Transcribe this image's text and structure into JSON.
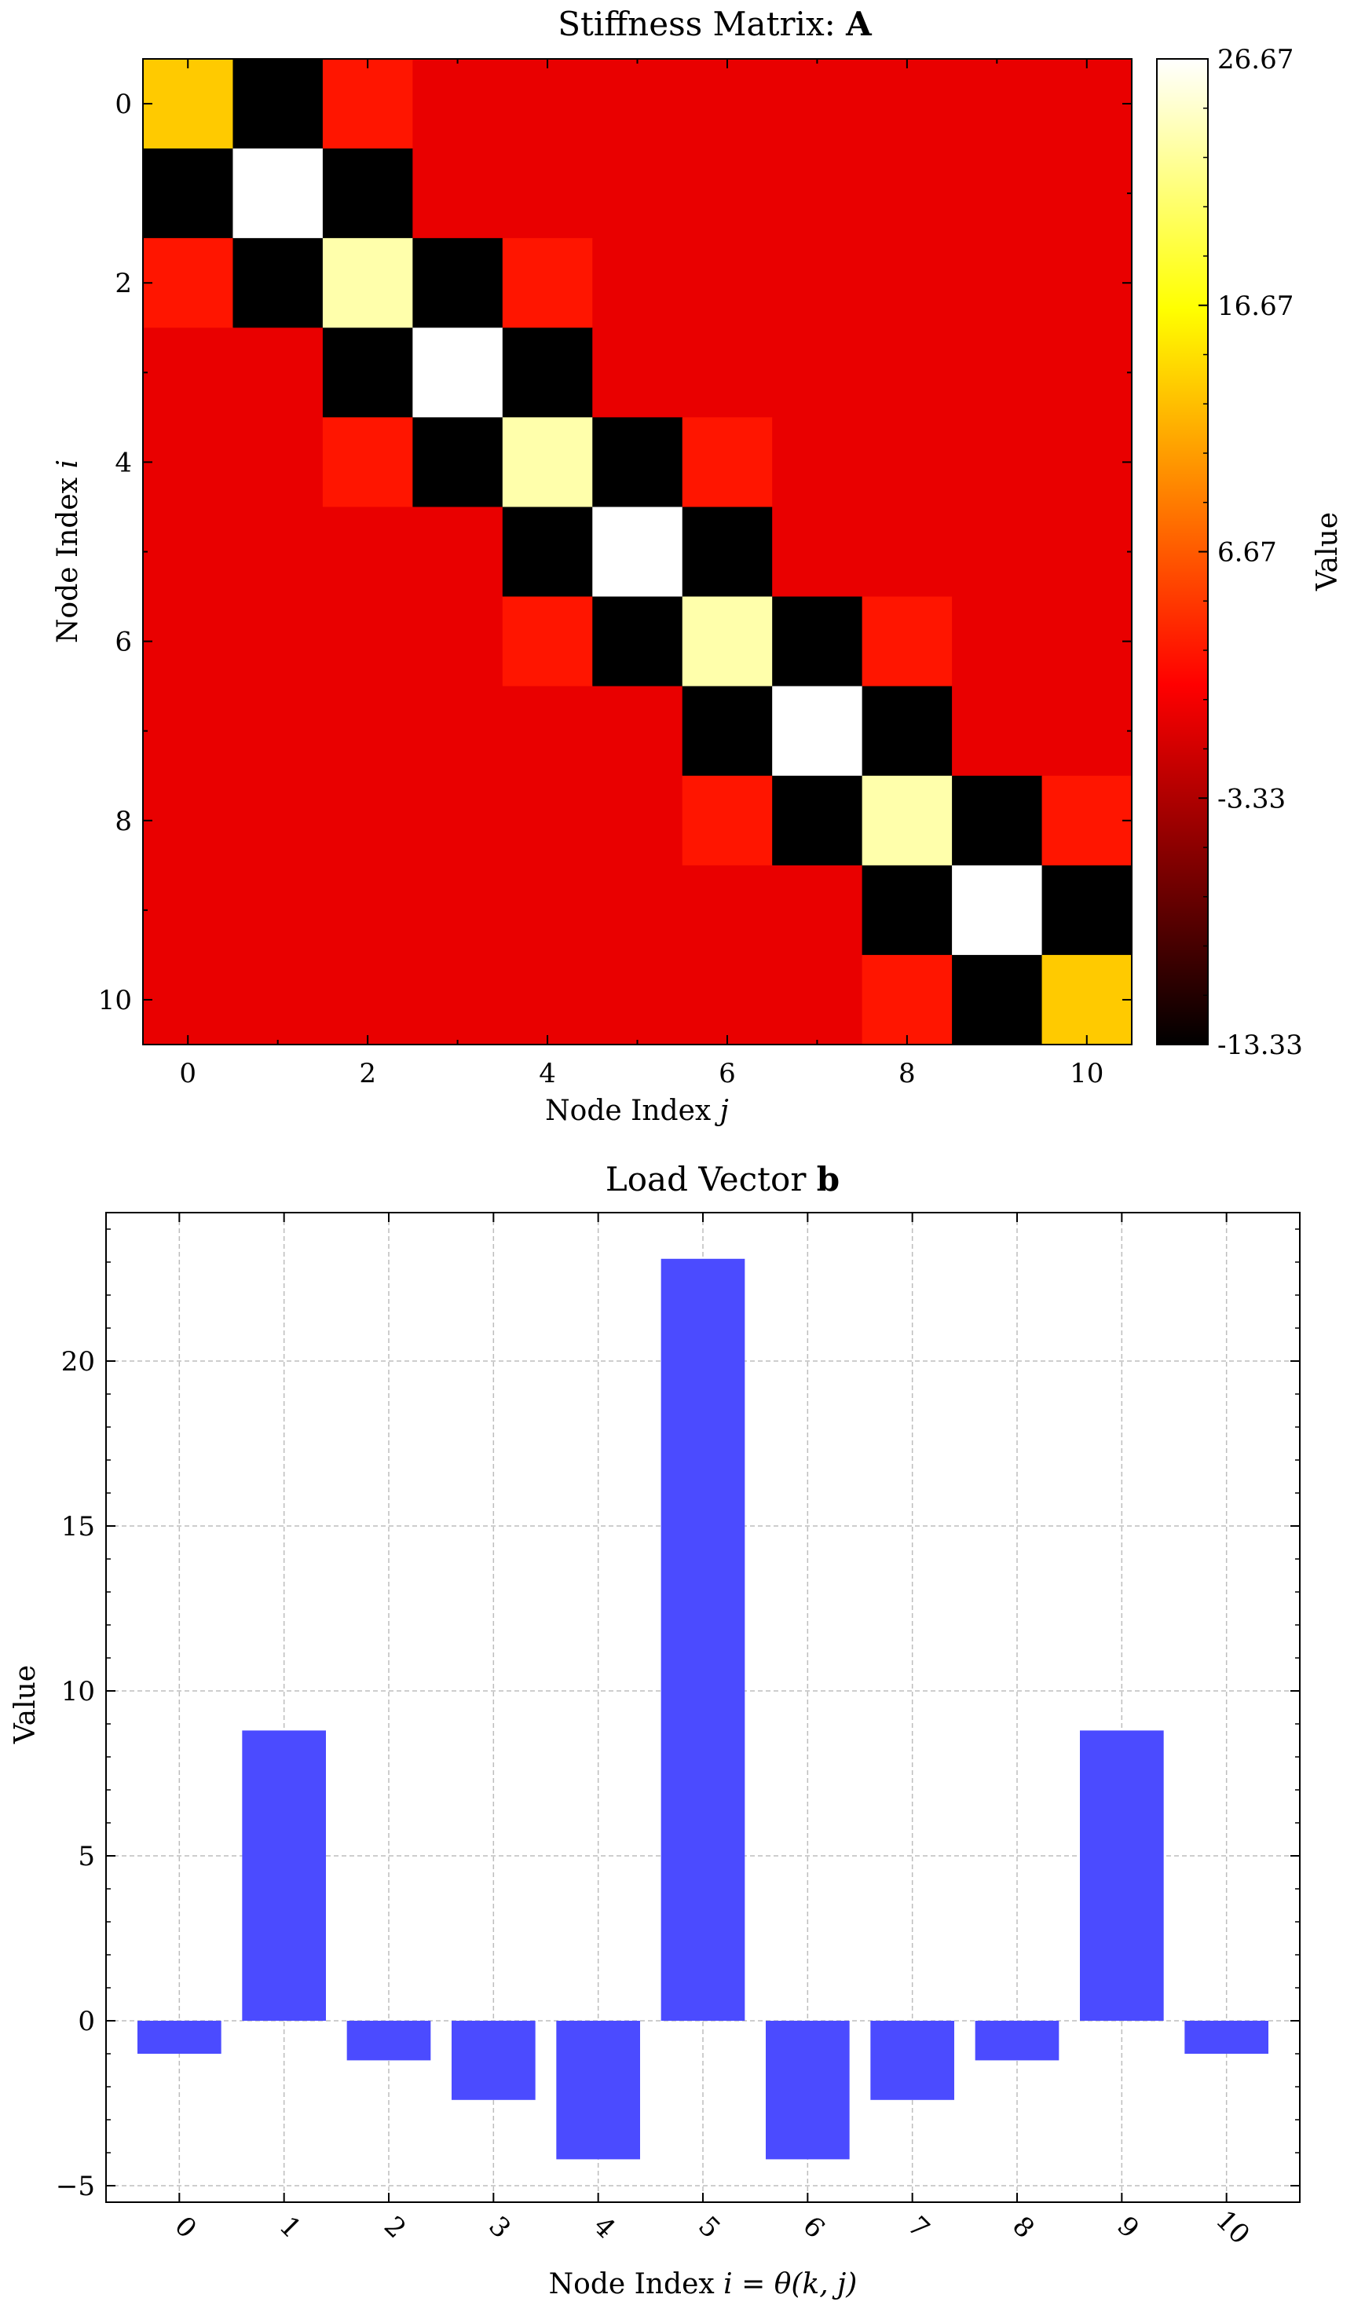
{
  "chart_data": [
    {
      "type": "heatmap",
      "title_prefix": "Stiffness Matrix: ",
      "title_bold": "A",
      "xlabel": "Node Index ",
      "xlabel_var": "j",
      "ylabel": "Node Index ",
      "ylabel_var": "i",
      "colorbar_label": "Value",
      "colormap": "hot",
      "vmin": -13.33,
      "vmax": 26.67,
      "colorbar_ticks": [
        "-13.33",
        "-3.33",
        "6.67",
        "16.67",
        "26.67"
      ],
      "colorbar_tick_values": [
        -13.33,
        -3.33,
        6.67,
        16.67,
        26.67
      ],
      "x_ticks": [
        "0",
        "2",
        "4",
        "6",
        "8",
        "10"
      ],
      "y_ticks": [
        "0",
        "2",
        "4",
        "6",
        "8",
        "10"
      ],
      "matrix": [
        [
          13.33,
          -13.33,
          2.5,
          0,
          0,
          0,
          0,
          0,
          0,
          0,
          0
        ],
        [
          -13.33,
          26.67,
          -13.33,
          0,
          0,
          0,
          0,
          0,
          0,
          0,
          0
        ],
        [
          2.5,
          -13.33,
          23.33,
          -13.33,
          2.5,
          0,
          0,
          0,
          0,
          0,
          0
        ],
        [
          0,
          0,
          -13.33,
          26.67,
          -13.33,
          0,
          0,
          0,
          0,
          0,
          0
        ],
        [
          0,
          0,
          2.5,
          -13.33,
          23.33,
          -13.33,
          2.5,
          0,
          0,
          0,
          0
        ],
        [
          0,
          0,
          0,
          0,
          -13.33,
          26.67,
          -13.33,
          0,
          0,
          0,
          0
        ],
        [
          0,
          0,
          0,
          0,
          2.5,
          -13.33,
          23.33,
          -13.33,
          2.5,
          0,
          0
        ],
        [
          0,
          0,
          0,
          0,
          0,
          0,
          -13.33,
          26.67,
          -13.33,
          0,
          0
        ],
        [
          0,
          0,
          0,
          0,
          0,
          0,
          2.5,
          -13.33,
          23.33,
          -13.33,
          2.5
        ],
        [
          0,
          0,
          0,
          0,
          0,
          0,
          0,
          0,
          -13.33,
          26.67,
          -13.33
        ],
        [
          0,
          0,
          0,
          0,
          0,
          0,
          0,
          0,
          2.5,
          -13.33,
          13.33
        ]
      ]
    },
    {
      "type": "bar",
      "title_prefix": "Load Vector ",
      "title_bold": "b",
      "xlabel": "Node Index ",
      "xlabel_math": "i = θ(k, j)",
      "ylabel": "Value",
      "categories": [
        "0",
        "1",
        "2",
        "3",
        "4",
        "5",
        "6",
        "7",
        "8",
        "9",
        "10"
      ],
      "values": [
        -1.0,
        8.8,
        -1.2,
        -2.4,
        -4.2,
        23.1,
        -4.2,
        -2.4,
        -1.2,
        8.8,
        -1.0
      ],
      "ylim": [
        -5.5,
        24.5
      ],
      "y_ticks": [
        -5,
        0,
        5,
        10,
        15,
        20
      ],
      "y_tick_labels": [
        "−5",
        "0",
        "5",
        "10",
        "15",
        "20"
      ],
      "bar_color": "#4b4bff",
      "grid": true
    }
  ]
}
